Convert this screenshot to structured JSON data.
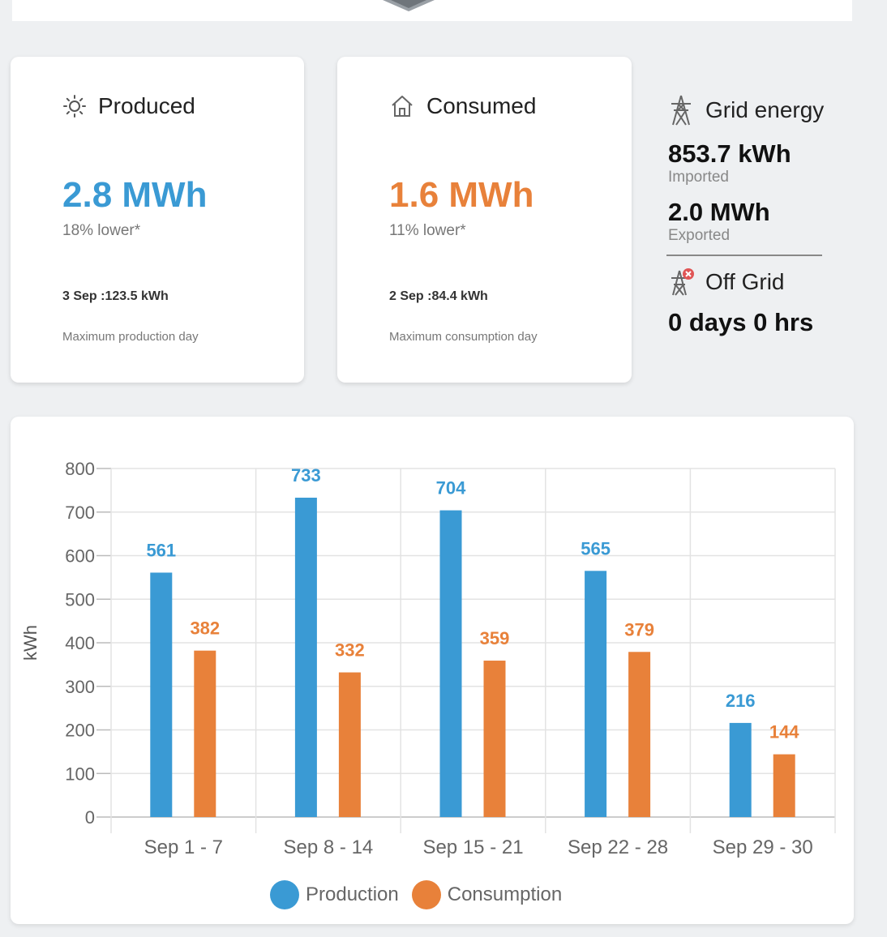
{
  "colors": {
    "production": "#3a9ad4",
    "consumption": "#e8813a"
  },
  "produced": {
    "title": "Produced",
    "icon": "sun-icon",
    "value": "2.8 MWh",
    "change": "18% lower*",
    "max_day": "3 Sep :123.5 kWh",
    "max_label": "Maximum production day"
  },
  "consumed": {
    "title": "Consumed",
    "icon": "house-icon",
    "value": "1.6 MWh",
    "change": "11% lower*",
    "max_day": "2 Sep :84.4 kWh",
    "max_label": "Maximum consumption day"
  },
  "grid": {
    "title": "Grid energy",
    "icon": "power-tower-icon",
    "imported_value": "853.7 kWh",
    "imported_label": "Imported",
    "exported_value": "2.0 MWh",
    "exported_label": "Exported",
    "offgrid_title": "Off Grid",
    "offgrid_icon": "power-tower-off-icon",
    "offgrid_value": "0 days 0 hrs"
  },
  "chart_data": {
    "type": "bar",
    "categories": [
      "Sep 1 - 7",
      "Sep 8 - 14",
      "Sep 15 - 21",
      "Sep 22 - 28",
      "Sep 29 - 30"
    ],
    "series": [
      {
        "name": "Production",
        "values": [
          561,
          733,
          704,
          565,
          216
        ]
      },
      {
        "name": "Consumption",
        "values": [
          382,
          332,
          359,
          379,
          144
        ]
      }
    ],
    "ylabel": "kWh",
    "ylim": [
      0,
      800
    ],
    "yticks": [
      0,
      100,
      200,
      300,
      400,
      500,
      600,
      700,
      800
    ],
    "grid": true,
    "legend": "bottom"
  }
}
